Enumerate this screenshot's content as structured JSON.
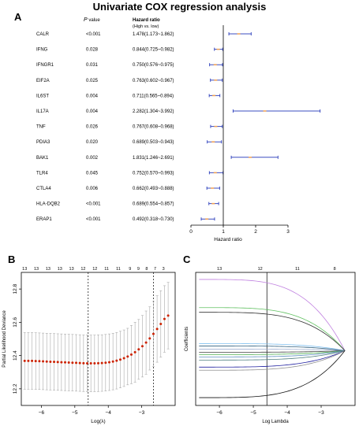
{
  "figure": {
    "title": "Univariate COX regression analysis",
    "panel_a": "A",
    "panel_b": "B",
    "panel_c": "C"
  },
  "forest": {
    "pvalue_header_p": "P",
    "pvalue_header_rest": " value",
    "hr_header": "Hazard ratio",
    "hr_subheader": "(High vs. low)"
  },
  "colors": {
    "forest_line": "#3b4cc0",
    "forest_point": "#f0a050",
    "lambda_point": "#cc2200",
    "lambda_bar": "#aaaaaa",
    "coef_lines": [
      "#c080e0",
      "#60c060",
      "#303030",
      "#80c0f0",
      "#306080",
      "#a0b0d0",
      "#404040",
      "#50b050",
      "#6090c0",
      "#508080",
      "#2020a0",
      "#909090",
      "#101010"
    ]
  },
  "chart_data": [
    {
      "type": "forest",
      "xlabel": "Hazard ratio",
      "xlim": [
        0,
        3
      ],
      "xticks": [
        "0",
        "1",
        "2",
        "3"
      ],
      "reference_line": 1,
      "rows": [
        {
          "gene": "CALR",
          "p": "<0.001",
          "hr_text": "1.478(1.173~1.862)",
          "hr": 1.478,
          "lo": 1.173,
          "hi": 1.862
        },
        {
          "gene": "IFNG",
          "p": "0.028",
          "hr_text": "0.844(0.725~0.982)",
          "hr": 0.844,
          "lo": 0.725,
          "hi": 0.982
        },
        {
          "gene": "IFNGR1",
          "p": "0.031",
          "hr_text": "0.750(0.576~0.975)",
          "hr": 0.75,
          "lo": 0.576,
          "hi": 0.975
        },
        {
          "gene": "EIF2A",
          "p": "0.025",
          "hr_text": "0.763(0.602~0.967)",
          "hr": 0.763,
          "lo": 0.602,
          "hi": 0.967
        },
        {
          "gene": "IL6ST",
          "p": "0.004",
          "hr_text": "0.711(0.565~0.894)",
          "hr": 0.711,
          "lo": 0.565,
          "hi": 0.894
        },
        {
          "gene": "IL17A",
          "p": "0.004",
          "hr_text": "2.282(1.304~3.992)",
          "hr": 2.282,
          "lo": 1.304,
          "hi": 3.992
        },
        {
          "gene": "TNF",
          "p": "0.026",
          "hr_text": "0.767(0.608~0.968)",
          "hr": 0.767,
          "lo": 0.608,
          "hi": 0.968
        },
        {
          "gene": "PDIA3",
          "p": "0.020",
          "hr_text": "0.689(0.503~0.943)",
          "hr": 0.689,
          "lo": 0.503,
          "hi": 0.943
        },
        {
          "gene": "BAK1",
          "p": "0.002",
          "hr_text": "1.831(1.246~2.691)",
          "hr": 1.831,
          "lo": 1.246,
          "hi": 2.691
        },
        {
          "gene": "TLR4",
          "p": "0.045",
          "hr_text": "0.752(0.570~0.993)",
          "hr": 0.752,
          "lo": 0.57,
          "hi": 0.993
        },
        {
          "gene": "CTLA4",
          "p": "0.006",
          "hr_text": "0.662(0.493~0.888)",
          "hr": 0.662,
          "lo": 0.493,
          "hi": 0.888
        },
        {
          "gene": "HLA-DQB2",
          "p": "<0.001",
          "hr_text": "0.689(0.554~0.857)",
          "hr": 0.689,
          "lo": 0.554,
          "hi": 0.857
        },
        {
          "gene": "ERAP1",
          "p": "<0.001",
          "hr_text": "0.492(0.318~0.730)",
          "hr": 0.492,
          "lo": 0.318,
          "hi": 0.73
        }
      ]
    },
    {
      "type": "scatter",
      "xlabel": "Log(λ)",
      "ylabel": "Partial Likelihood Deviance",
      "xlim": [
        -6.6,
        -2.0
      ],
      "ylim": [
        12.1,
        12.9
      ],
      "xticks": [
        -6,
        -5,
        -4,
        -3
      ],
      "yticks": [
        12.2,
        12.4,
        12.6,
        12.8
      ],
      "top_ticks": [
        {
          "x": -6.5,
          "label": "13"
        },
        {
          "x": -6.15,
          "label": "13"
        },
        {
          "x": -5.8,
          "label": "13"
        },
        {
          "x": -5.45,
          "label": "13"
        },
        {
          "x": -5.1,
          "label": "13"
        },
        {
          "x": -4.75,
          "label": "12"
        },
        {
          "x": -4.4,
          "label": "12"
        },
        {
          "x": -4.05,
          "label": "11"
        },
        {
          "x": -3.7,
          "label": "11"
        },
        {
          "x": -3.35,
          "label": "9"
        },
        {
          "x": -3.1,
          "label": "9"
        },
        {
          "x": -2.85,
          "label": "8"
        },
        {
          "x": -2.6,
          "label": "7"
        },
        {
          "x": -2.35,
          "label": "3"
        }
      ],
      "vlines": [
        -4.6,
        -2.65
      ],
      "points": [
        {
          "x": -6.5,
          "y": 12.368,
          "err": 0.17
        },
        {
          "x": -6.39,
          "y": 12.368,
          "err": 0.17
        },
        {
          "x": -6.28,
          "y": 12.368,
          "err": 0.17
        },
        {
          "x": -6.17,
          "y": 12.367,
          "err": 0.17
        },
        {
          "x": -6.06,
          "y": 12.366,
          "err": 0.17
        },
        {
          "x": -5.95,
          "y": 12.365,
          "err": 0.17
        },
        {
          "x": -5.84,
          "y": 12.364,
          "err": 0.17
        },
        {
          "x": -5.73,
          "y": 12.363,
          "err": 0.17
        },
        {
          "x": -5.62,
          "y": 12.362,
          "err": 0.17
        },
        {
          "x": -5.51,
          "y": 12.361,
          "err": 0.17
        },
        {
          "x": -5.4,
          "y": 12.36,
          "err": 0.17
        },
        {
          "x": -5.29,
          "y": 12.359,
          "err": 0.17
        },
        {
          "x": -5.18,
          "y": 12.358,
          "err": 0.17
        },
        {
          "x": -5.07,
          "y": 12.357,
          "err": 0.17
        },
        {
          "x": -4.96,
          "y": 12.356,
          "err": 0.17
        },
        {
          "x": -4.85,
          "y": 12.355,
          "err": 0.17
        },
        {
          "x": -4.74,
          "y": 12.354,
          "err": 0.17
        },
        {
          "x": -4.63,
          "y": 12.353,
          "err": 0.17
        },
        {
          "x": -4.52,
          "y": 12.353,
          "err": 0.17
        },
        {
          "x": -4.41,
          "y": 12.353,
          "err": 0.17
        },
        {
          "x": -4.3,
          "y": 12.354,
          "err": 0.17
        },
        {
          "x": -4.19,
          "y": 12.355,
          "err": 0.17
        },
        {
          "x": -4.08,
          "y": 12.357,
          "err": 0.17
        },
        {
          "x": -3.97,
          "y": 12.36,
          "err": 0.17
        },
        {
          "x": -3.86,
          "y": 12.364,
          "err": 0.17
        },
        {
          "x": -3.75,
          "y": 12.369,
          "err": 0.17
        },
        {
          "x": -3.64,
          "y": 12.376,
          "err": 0.17
        },
        {
          "x": -3.53,
          "y": 12.384,
          "err": 0.17
        },
        {
          "x": -3.42,
          "y": 12.394,
          "err": 0.17
        },
        {
          "x": -3.31,
          "y": 12.406,
          "err": 0.175
        },
        {
          "x": -3.2,
          "y": 12.42,
          "err": 0.18
        },
        {
          "x": -3.09,
          "y": 12.437,
          "err": 0.18
        },
        {
          "x": -2.98,
          "y": 12.456,
          "err": 0.185
        },
        {
          "x": -2.87,
          "y": 12.478,
          "err": 0.19
        },
        {
          "x": -2.76,
          "y": 12.503,
          "err": 0.19
        },
        {
          "x": -2.65,
          "y": 12.53,
          "err": 0.195
        },
        {
          "x": -2.54,
          "y": 12.56,
          "err": 0.2
        },
        {
          "x": -2.43,
          "y": 12.59,
          "err": 0.2
        },
        {
          "x": -2.32,
          "y": 12.62,
          "err": 0.2
        },
        {
          "x": -2.21,
          "y": 12.64,
          "err": 0.2
        }
      ]
    },
    {
      "type": "line",
      "xlabel": "Log Lambda",
      "ylabel": "Coefficients",
      "xlim": [
        -6.7,
        -2.0
      ],
      "ylim": [
        -0.7,
        1.0
      ],
      "xticks": [
        -6,
        -5,
        -4,
        -3
      ],
      "top_ticks": [
        {
          "x": -6.0,
          "label": "13"
        },
        {
          "x": -4.8,
          "label": "12"
        },
        {
          "x": -3.7,
          "label": "11"
        },
        {
          "x": -2.6,
          "label": "8"
        }
      ],
      "vlines": [
        -4.6
      ],
      "series_start": [
        0.91,
        0.55,
        0.49,
        0.09,
        0.06,
        0.02,
        -0.02,
        -0.05,
        -0.08,
        -0.12,
        -0.21,
        -0.25,
        -0.6
      ]
    }
  ]
}
